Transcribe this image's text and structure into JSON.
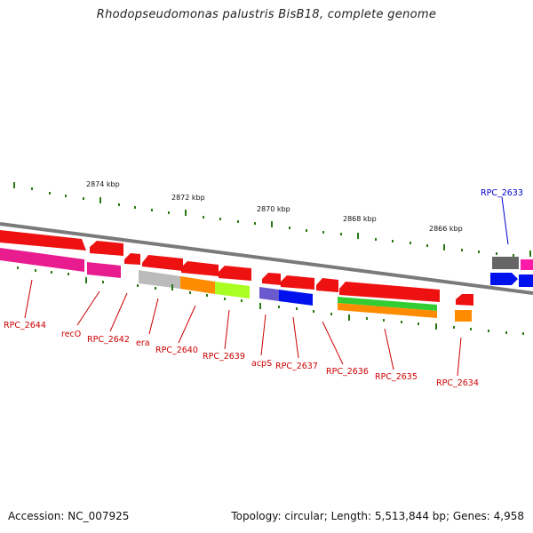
{
  "title": "Rhodopseudomonas palustris BisB18, complete genome",
  "footer": {
    "accession": "Accession: NC_007925",
    "summary": "Topology: circular; Length: 5,513,844 bp; Genes: 4,958"
  },
  "colors": {
    "backbone": "#7a7a7a",
    "tick": "#2a7a14",
    "label_red": "#cc0000",
    "label_blue": "#0000cc"
  },
  "kbp_labels": [
    "2874 kbp",
    "2872 kbp",
    "2870 kbp",
    "2868 kbp",
    "2866 kbp"
  ],
  "genes": [
    {
      "name": "RPC_2644",
      "color": "red"
    },
    {
      "name": "recO",
      "color": "red"
    },
    {
      "name": "RPC_2642",
      "color": "red"
    },
    {
      "name": "era",
      "color": "red"
    },
    {
      "name": "RPC_2640",
      "color": "red"
    },
    {
      "name": "RPC_2639",
      "color": "red"
    },
    {
      "name": "acpS",
      "color": "red"
    },
    {
      "name": "RPC_2637",
      "color": "red"
    },
    {
      "name": "RPC_2636",
      "color": "red"
    },
    {
      "name": "RPC_2635",
      "color": "red"
    },
    {
      "name": "RPC_2634",
      "color": "red"
    },
    {
      "name": "RPC_2633",
      "color": "blue"
    }
  ]
}
